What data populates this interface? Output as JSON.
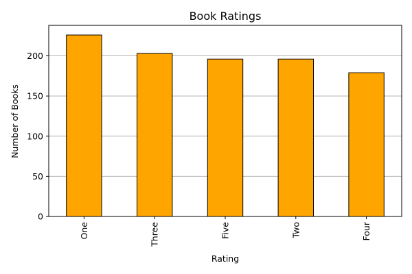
{
  "chart_data": {
    "type": "bar",
    "title": "Book Ratings",
    "xlabel": "Rating",
    "ylabel": "Number of Books",
    "categories": [
      "One",
      "Three",
      "Five",
      "Two",
      "Four"
    ],
    "values": [
      226,
      203,
      196,
      196,
      179
    ],
    "ylim": [
      0,
      238
    ],
    "yticks": [
      0,
      50,
      100,
      150,
      200
    ],
    "grid": {
      "y": true,
      "x": false
    },
    "colors": {
      "bar_fill": "#FFA500",
      "bar_edge": "#000000",
      "grid": "#b0b0b0",
      "axis": "#000000"
    }
  }
}
